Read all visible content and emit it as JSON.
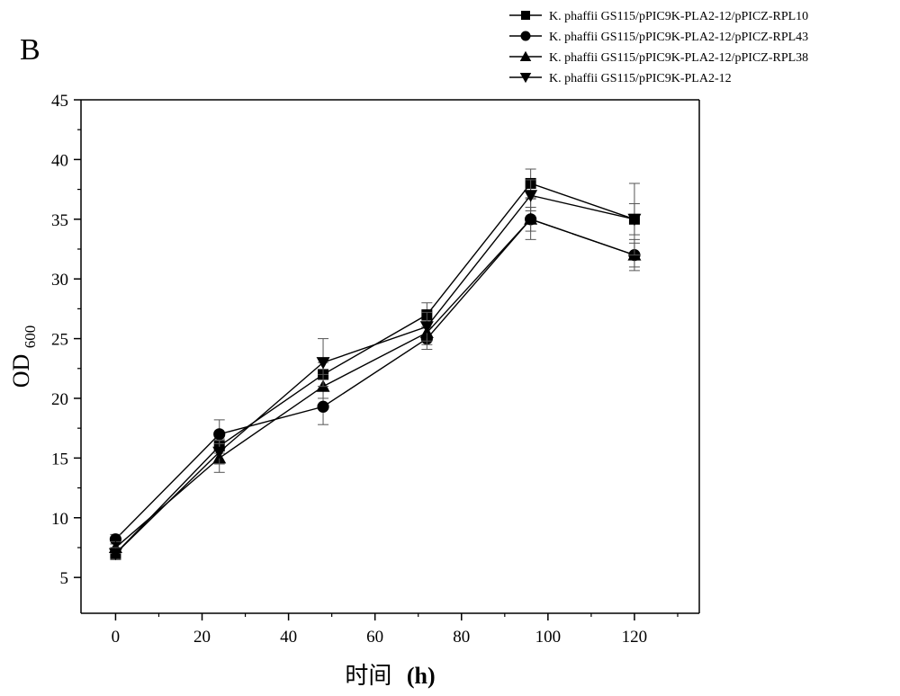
{
  "panel_label": "B",
  "chart_data": {
    "type": "line",
    "xlabel": "时间",
    "xlabel_unit": "(h)",
    "ylabel": "OD",
    "ylabel_subscript": "600",
    "xlim": [
      -8,
      135
    ],
    "ylim": [
      2,
      45
    ],
    "xticks": [
      0,
      20,
      40,
      60,
      80,
      100,
      120
    ],
    "yticks": [
      5,
      10,
      15,
      20,
      25,
      30,
      35,
      40,
      45
    ],
    "x": [
      0,
      24,
      48,
      72,
      96,
      120
    ],
    "grid": false,
    "legend_position": "top-right",
    "series": [
      {
        "name": "K. phaffii GS115/pPIC9K-PLA2-12/pPICZ-RPL10",
        "marker": "square",
        "values": [
          7.0,
          16.0,
          22.0,
          27.0,
          38.0,
          35.0
        ],
        "errors": [
          0.5,
          0.6,
          1.0,
          1.0,
          1.2,
          1.3
        ]
      },
      {
        "name": "K. phaffii GS115/pPIC9K-PLA2-12/pPICZ-RPL43",
        "marker": "circle",
        "values": [
          8.2,
          17.0,
          19.3,
          25.0,
          35.0,
          32.0
        ],
        "errors": [
          0.4,
          1.2,
          1.5,
          0.9,
          1.7,
          1.3
        ]
      },
      {
        "name": "K. phaffii GS115/pPIC9K-PLA2-12/pPICZ-RPL38",
        "marker": "triangle-up",
        "values": [
          7.5,
          15.0,
          21.0,
          25.5,
          35.0,
          32.0
        ],
        "errors": [
          0.5,
          1.2,
          1.0,
          1.0,
          1.0,
          1.0
        ]
      },
      {
        "name": "K. phaffii GS115/pPIC9K-PLA2-12",
        "marker": "triangle-down",
        "values": [
          7.0,
          15.5,
          23.0,
          26.0,
          37.0,
          35.0
        ],
        "errors": [
          0.5,
          1.0,
          2.0,
          1.2,
          1.3,
          3.0
        ]
      }
    ]
  }
}
